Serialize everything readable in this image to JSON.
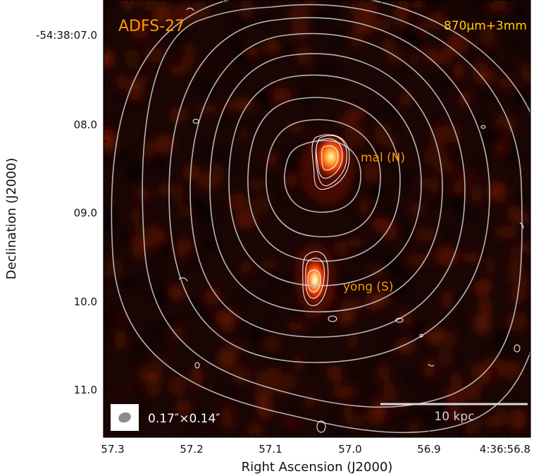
{
  "figure": {
    "target_name": "ADFS-27",
    "bands_label": "870μm+3mm",
    "x_axis_title": "Right Ascension (J2000)",
    "y_axis_title": "Declination (J2000)",
    "x_ticks": [
      "57.3",
      "57.2",
      "57.1",
      "57.0",
      "56.9",
      "4:36:56.8"
    ],
    "y_ticks": [
      "-54:38:07.0",
      "08.0",
      "09.0",
      "10.0",
      "11.0"
    ],
    "sources": [
      {
        "label": "mal (N)"
      },
      {
        "label": "yong (S)"
      }
    ],
    "beam_label": "0.17″×0.14″",
    "scalebar_label": "10 kpc",
    "colors": {
      "background": "#1a0604",
      "emission": "#c81e00",
      "contour_grey": "#b4b4b4",
      "contour_white": "#ffffff",
      "label_orange": "#ff9a00",
      "label_yellow": "#ffd200"
    }
  }
}
